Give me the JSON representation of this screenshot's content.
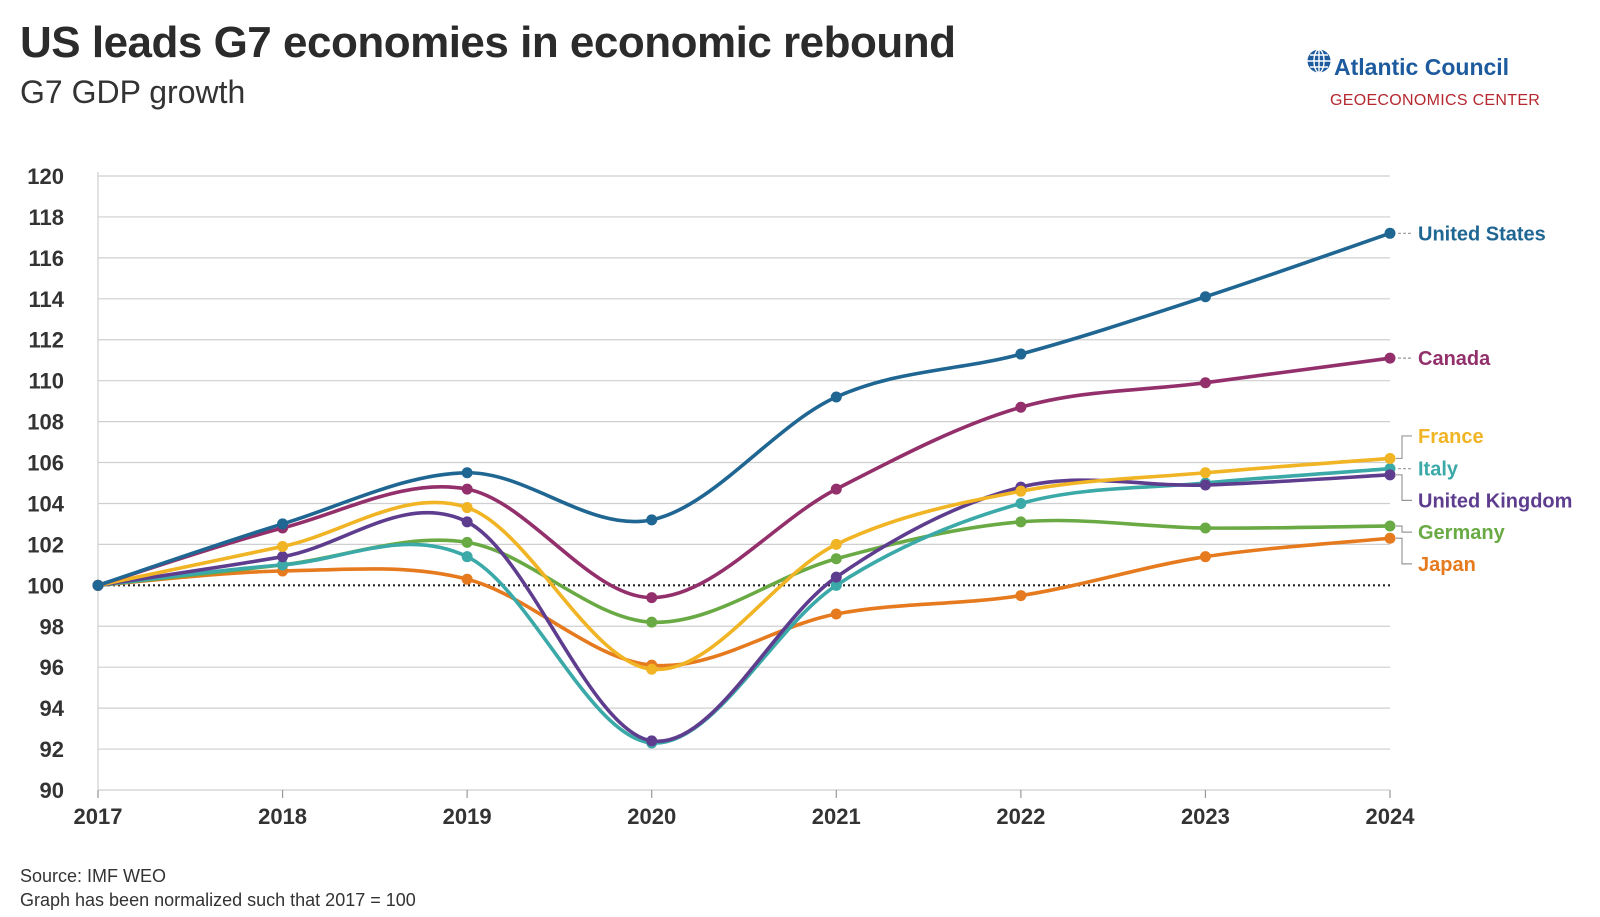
{
  "header": {
    "title": "US leads G7 economies in economic rebound",
    "subtitle": "G7 GDP growth"
  },
  "logo": {
    "name": "Atlantic Council",
    "sub": "GEOECONOMICS CENTER",
    "icon": "globe-icon",
    "name_color": "#1d5a9e",
    "sub_color": "#b5282f"
  },
  "footer": {
    "source": "Source: IMF WEO",
    "note": "Graph has been normalized such that 2017 = 100"
  },
  "chart_data": {
    "type": "line",
    "title": "US leads G7 economies in economic rebound",
    "subtitle": "G7 GDP growth",
    "xlabel": "",
    "ylabel": "",
    "x": [
      2017,
      2018,
      2019,
      2020,
      2021,
      2022,
      2023,
      2024
    ],
    "ylim": [
      90,
      120
    ],
    "yticks": [
      90,
      92,
      94,
      96,
      98,
      100,
      102,
      104,
      106,
      108,
      110,
      112,
      114,
      116,
      118,
      120
    ],
    "grid": "horizontal",
    "reference_line": 100,
    "legend": "right-end-labels",
    "series": [
      {
        "name": "United States",
        "color": "#1f6693",
        "values": [
          100,
          103.0,
          105.5,
          103.2,
          109.2,
          111.3,
          114.1,
          117.2
        ]
      },
      {
        "name": "Canada",
        "color": "#93306b",
        "values": [
          100,
          102.8,
          104.7,
          99.4,
          104.7,
          108.7,
          109.9,
          111.1
        ]
      },
      {
        "name": "France",
        "color": "#f0b424",
        "values": [
          100,
          101.9,
          103.8,
          95.9,
          102.0,
          104.6,
          105.5,
          106.2
        ]
      },
      {
        "name": "Italy",
        "color": "#3aa9a8",
        "values": [
          100,
          101.0,
          101.4,
          92.3,
          100.0,
          104.0,
          105.0,
          105.7
        ]
      },
      {
        "name": "United Kingdom",
        "color": "#5e3d8f",
        "values": [
          100,
          101.4,
          103.1,
          92.4,
          100.4,
          104.8,
          104.9,
          105.4
        ]
      },
      {
        "name": "Germany",
        "color": "#6aaa44",
        "values": [
          100,
          101.0,
          102.1,
          98.2,
          101.3,
          103.1,
          102.8,
          102.9
        ]
      },
      {
        "name": "Japan",
        "color": "#e67a1e",
        "values": [
          100,
          100.7,
          100.3,
          96.1,
          98.6,
          99.5,
          101.4,
          102.3
        ]
      }
    ]
  }
}
